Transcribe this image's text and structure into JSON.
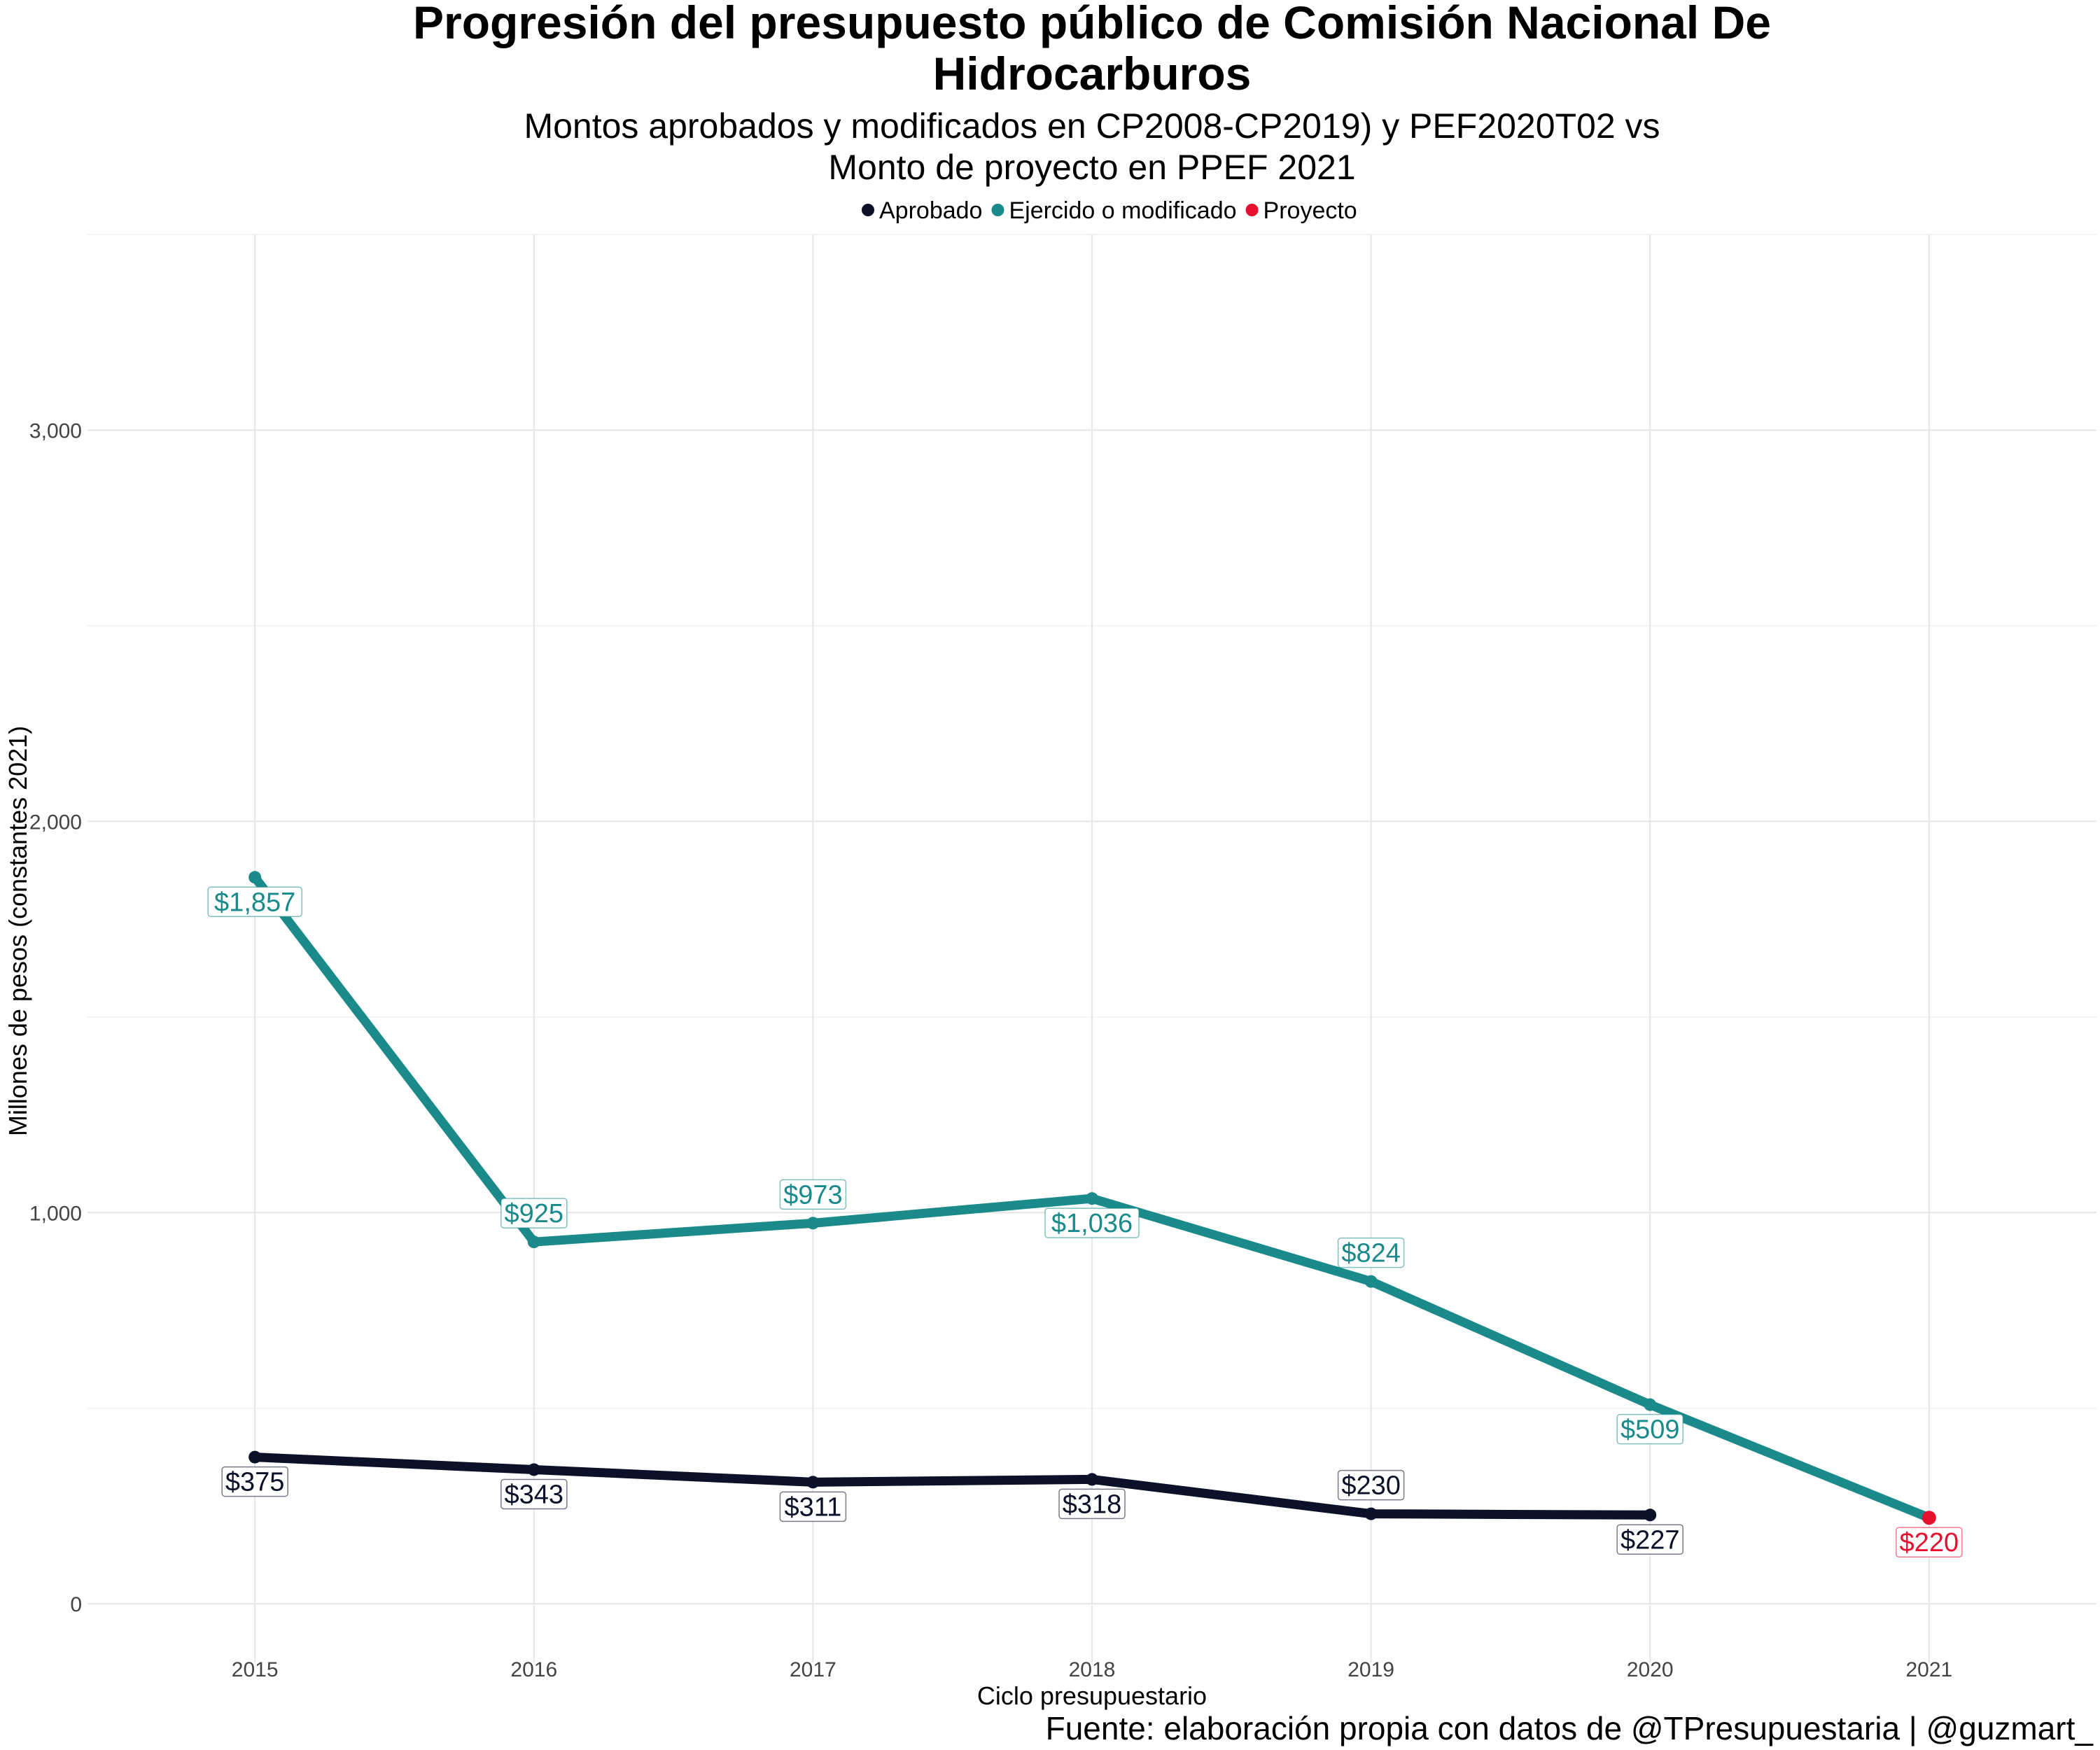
{
  "chart_data": {
    "type": "line",
    "title_lines": [
      "Progresión del presupuesto público de Comisión Nacional De",
      "Hidrocarburos"
    ],
    "subtitle_lines": [
      "Montos aprobados y modificados en CP2008-CP2019) y PEF2020T02 vs",
      "Monto de proyecto en PPEF 2021"
    ],
    "xlabel": "Ciclo presupuestario",
    "ylabel": "Millones de pesos (constantes 2021)",
    "caption": "Fuente: elaboración propia con datos de @TPresupuestaria | @guzmart_",
    "x": [
      2015,
      2016,
      2017,
      2018,
      2019,
      2020,
      2021
    ],
    "x_tick_labels": [
      "2015",
      "2016",
      "2017",
      "2018",
      "2019",
      "2020",
      "2021"
    ],
    "y_ticks": [
      0,
      1000,
      2000,
      3000
    ],
    "y_tick_labels": [
      "0",
      "1,000",
      "2,000",
      "3,000"
    ],
    "ylim": [
      -150,
      3500
    ],
    "xlim": [
      2014.4,
      2021.6
    ],
    "grid": true,
    "legend_position": "top",
    "legend": [
      {
        "name": "Aprobado",
        "color": "#0a1128"
      },
      {
        "name": "Ejercido o modificado",
        "color": "#1a8a8a"
      },
      {
        "name": "Proyecto",
        "color": "#e8102f"
      }
    ],
    "series": [
      {
        "name": "Aprobado",
        "color": "#0a1128",
        "x": [
          2015,
          2016,
          2017,
          2018,
          2019,
          2020
        ],
        "values": [
          375,
          343,
          311,
          318,
          230,
          227
        ],
        "labels": [
          "$375",
          "$343",
          "$311",
          "$318",
          "$230",
          "$227"
        ],
        "label_side": [
          "below",
          "below",
          "below",
          "below",
          "above",
          "below"
        ]
      },
      {
        "name": "Ejercido o modificado",
        "color": "#1a8a8a",
        "x": [
          2015,
          2016,
          2017,
          2018,
          2019,
          2020,
          2021
        ],
        "values": [
          1857,
          925,
          973,
          1036,
          824,
          509,
          220
        ],
        "labels": [
          "$1,857",
          "$925",
          "$973",
          "$1,036",
          "$824",
          "$509",
          ""
        ],
        "label_side": [
          "below",
          "above",
          "above",
          "below",
          "above",
          "below",
          "none"
        ]
      },
      {
        "name": "Proyecto",
        "color": "#e8102f",
        "x": [
          2021
        ],
        "values": [
          220
        ],
        "labels": [
          "$220"
        ],
        "label_side": [
          "below"
        ]
      }
    ]
  }
}
